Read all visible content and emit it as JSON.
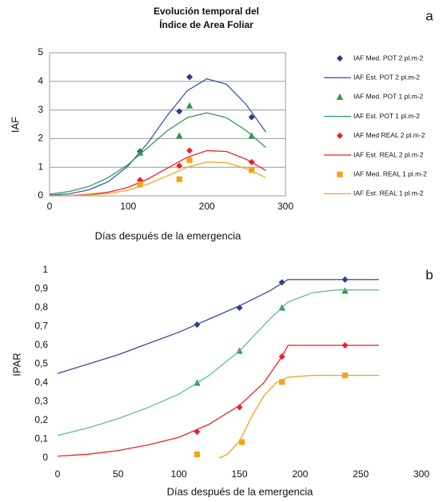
{
  "chart_data": [
    {
      "type": "line",
      "panel_label": "a",
      "title": [
        "Evolución temporal del",
        "Índice de Area Foliar"
      ],
      "x_label": "Días después de la emergencia",
      "y_label": "IAF",
      "xlim": [
        0,
        300
      ],
      "xticks": [
        0,
        100,
        200,
        300
      ],
      "ylim": [
        0,
        5
      ],
      "yticks": [
        0,
        1,
        2,
        3,
        4,
        5
      ],
      "grid": true,
      "legend": "right",
      "series": [
        {
          "name": "IAF Med. POT 2 pl.m-2",
          "mode": "markers",
          "marker": "diamond",
          "color": "#2b3990",
          "x": [
            115,
            165,
            178,
            257
          ],
          "values": [
            1.55,
            2.95,
            4.15,
            2.75
          ]
        },
        {
          "name": "IAF Est. POT 2 pl.m-2",
          "mode": "line",
          "color": "#3b5bab",
          "x": [
            0,
            25,
            50,
            75,
            100,
            125,
            150,
            175,
            200,
            225,
            250,
            275
          ],
          "values": [
            0.02,
            0.07,
            0.21,
            0.5,
            1.05,
            1.85,
            2.82,
            3.67,
            4.09,
            3.9,
            3.19,
            2.23
          ]
        },
        {
          "name": "IAF Med. POT 1 pl.m-2",
          "mode": "markers",
          "marker": "triangle",
          "color": "#2e9a48",
          "x": [
            115,
            165,
            178,
            257
          ],
          "values": [
            1.5,
            2.1,
            3.15,
            2.1
          ]
        },
        {
          "name": "IAF Est. POT 1 pl.m-2",
          "mode": "line",
          "color": "#2e9a5e",
          "x": [
            0,
            25,
            50,
            75,
            100,
            125,
            150,
            175,
            200,
            225,
            250,
            275
          ],
          "values": [
            0.06,
            0.15,
            0.33,
            0.64,
            1.1,
            1.69,
            2.28,
            2.73,
            2.9,
            2.73,
            2.28,
            1.69
          ]
        },
        {
          "name": "IAF Med REAL 2 pl.m-2",
          "mode": "markers",
          "marker": "diamond",
          "color": "#e8232a",
          "x": [
            115,
            165,
            178,
            257
          ],
          "values": [
            0.55,
            1.05,
            1.58,
            1.18
          ]
        },
        {
          "name": "IAF Est. REAL 2 pl.m-2",
          "mode": "line",
          "color": "#e8232a",
          "x": [
            0,
            25,
            50,
            75,
            100,
            125,
            150,
            175,
            200,
            225,
            250,
            275
          ],
          "values": [
            0,
            0.01,
            0.05,
            0.13,
            0.3,
            0.59,
            0.97,
            1.35,
            1.58,
            1.55,
            1.28,
            0.89
          ]
        },
        {
          "name": "IAF Med. REAL 1 pl.m-2",
          "mode": "markers",
          "marker": "square",
          "color": "#f7a21b",
          "x": [
            115,
            165,
            178,
            257
          ],
          "values": [
            0.4,
            0.58,
            1.25,
            0.9
          ]
        },
        {
          "name": "IAF Est. REAL 1 pl.m-2",
          "mode": "line",
          "color": "#f7a21b",
          "x": [
            0,
            25,
            50,
            75,
            100,
            125,
            150,
            175,
            200,
            225,
            250,
            275
          ],
          "values": [
            0,
            0.01,
            0.03,
            0.08,
            0.2,
            0.41,
            0.7,
            1.0,
            1.18,
            1.16,
            0.95,
            0.64
          ]
        }
      ]
    },
    {
      "type": "line",
      "panel_label": "b",
      "x_label": "Días después de la emergencia",
      "y_label": "IPAR",
      "xlim": [
        0,
        300
      ],
      "xticks": [
        0,
        50,
        100,
        150,
        200,
        250,
        300
      ],
      "ylim": [
        0,
        1
      ],
      "yticks": [
        0,
        {
          "value": 0.1,
          "label": "0,1"
        },
        {
          "value": 0.2,
          "label": "0,2"
        },
        {
          "value": 0.3,
          "label": "0,3"
        },
        {
          "value": 0.4,
          "label": "0,4"
        },
        {
          "value": 0.5,
          "label": "0,5"
        },
        {
          "value": 0.6,
          "label": "0,6"
        },
        {
          "value": 0.7,
          "label": "0,7"
        },
        {
          "value": 0.8,
          "label": "0,8"
        },
        {
          "value": 0.9,
          "label": "0,9"
        },
        1
      ],
      "grid": false,
      "series": [
        {
          "mode": "markers",
          "marker": "diamond",
          "color": "#2b3990",
          "x": [
            115,
            150,
            185,
            237
          ],
          "values": [
            0.71,
            0.8,
            0.935,
            0.95
          ]
        },
        {
          "mode": "line",
          "color": "#3b4aa0",
          "x": [
            0,
            25,
            50,
            75,
            100,
            125,
            150,
            175,
            190,
            265
          ],
          "values": [
            0.45,
            0.5,
            0.55,
            0.61,
            0.67,
            0.74,
            0.81,
            0.89,
            0.95,
            0.95
          ]
        },
        {
          "mode": "markers",
          "marker": "triangle",
          "color": "#2e9a48",
          "x": [
            115,
            150,
            185,
            237
          ],
          "values": [
            0.4,
            0.57,
            0.8,
            0.89
          ]
        },
        {
          "mode": "line",
          "color": "#5cbf9a",
          "x": [
            0,
            25,
            50,
            75,
            100,
            125,
            150,
            175,
            190,
            210,
            230,
            265
          ],
          "values": [
            0.12,
            0.16,
            0.21,
            0.27,
            0.34,
            0.44,
            0.57,
            0.74,
            0.83,
            0.88,
            0.895,
            0.895
          ]
        },
        {
          "mode": "markers",
          "marker": "diamond",
          "color": "#e8232a",
          "x": [
            115,
            150,
            185,
            237
          ],
          "values": [
            0.14,
            0.27,
            0.54,
            0.6
          ]
        },
        {
          "mode": "line",
          "color": "#e8232a",
          "x": [
            0,
            25,
            50,
            75,
            100,
            125,
            150,
            170,
            185,
            190,
            265
          ],
          "values": [
            0.01,
            0.02,
            0.04,
            0.07,
            0.11,
            0.18,
            0.28,
            0.4,
            0.54,
            0.6,
            0.6
          ]
        },
        {
          "mode": "markers",
          "marker": "square",
          "color": "#f7a21b",
          "x": [
            115,
            152,
            185,
            237
          ],
          "values": [
            0.02,
            0.085,
            0.405,
            0.44
          ]
        },
        {
          "mode": "line",
          "color": "#f7a21b",
          "x": [
            133,
            140,
            150,
            160,
            170,
            180,
            190,
            210,
            265
          ],
          "values": [
            0,
            0.02,
            0.09,
            0.22,
            0.33,
            0.4,
            0.43,
            0.44,
            0.44
          ]
        }
      ]
    }
  ]
}
